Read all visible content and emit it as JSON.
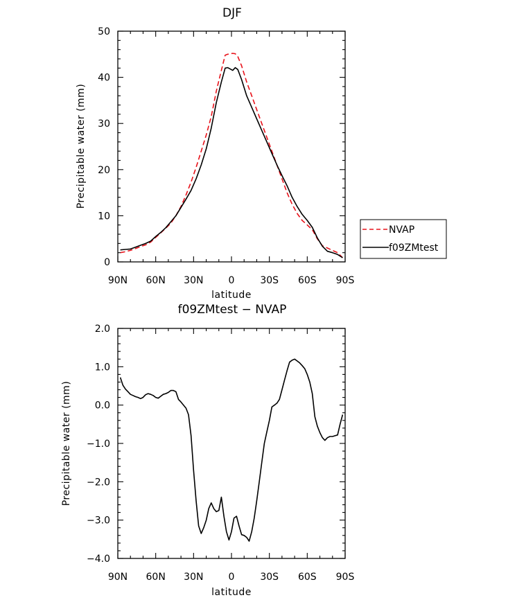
{
  "colors": {
    "nvap": "#e8121a",
    "model": "#000000",
    "axis": "#000000"
  },
  "chart_data": [
    {
      "type": "line",
      "title": "DJF",
      "xlabel": "latitude",
      "ylabel": "Precipitable water (mm)",
      "xlim": [
        90,
        -90
      ],
      "ylim": [
        0,
        50
      ],
      "yticks": [
        0,
        10,
        20,
        30,
        40,
        50
      ],
      "ytick_labels": [
        "0",
        "10",
        "20",
        "30",
        "40",
        "50"
      ],
      "xticks": [
        90,
        60,
        30,
        0,
        -30,
        -60,
        -90
      ],
      "xtick_labels": [
        "90N",
        "60N",
        "30N",
        "0",
        "30S",
        "60S",
        "90S"
      ],
      "grid": false,
      "legend_position": "right, outside plot",
      "series": [
        {
          "name": "NVAP",
          "style": "dashed",
          "color": "#e8121a",
          "x": [
            88,
            84,
            80,
            76,
            72,
            68,
            64,
            60,
            56,
            52,
            48,
            44,
            40,
            36,
            32,
            28,
            24,
            20,
            16,
            12,
            8,
            5,
            3,
            1,
            -1,
            -3,
            -5,
            -8,
            -12,
            -16,
            -20,
            -24,
            -28,
            -32,
            -36,
            -40,
            -44,
            -48,
            -52,
            -56,
            -60,
            -64,
            -68,
            -72,
            -76,
            -80,
            -84,
            -88
          ],
          "y": [
            2.0,
            2.2,
            2.5,
            2.9,
            3.3,
            3.7,
            4.3,
            5.3,
            6.3,
            7.3,
            8.4,
            10.0,
            12.0,
            14.5,
            17.3,
            20.5,
            24.0,
            27.5,
            31.5,
            37.0,
            41.5,
            44.8,
            45.0,
            45.1,
            45.2,
            45.1,
            44.5,
            42.5,
            39.0,
            36.0,
            33.0,
            30.0,
            27.0,
            24.0,
            21.0,
            18.0,
            15.0,
            12.5,
            10.5,
            9.0,
            8.0,
            7.0,
            5.0,
            3.5,
            3.0,
            2.5,
            2.0,
            0.9
          ]
        },
        {
          "name": "f09ZMtest",
          "style": "solid",
          "color": "#000000",
          "x": [
            88,
            84,
            80,
            76,
            72,
            68,
            64,
            60,
            56,
            52,
            48,
            44,
            40,
            36,
            32,
            28,
            24,
            20,
            16,
            12,
            8,
            5,
            3,
            1,
            -1,
            -3,
            -5,
            -8,
            -12,
            -16,
            -20,
            -24,
            -28,
            -32,
            -36,
            -40,
            -44,
            -48,
            -52,
            -56,
            -60,
            -64,
            -68,
            -72,
            -76,
            -80,
            -84,
            -88
          ],
          "y": [
            2.6,
            2.7,
            2.8,
            3.2,
            3.6,
            4.0,
            4.5,
            5.5,
            6.4,
            7.4,
            8.7,
            10.0,
            11.8,
            13.6,
            15.5,
            18.0,
            21.0,
            24.5,
            29.0,
            34.5,
            39.0,
            42.0,
            42.1,
            41.8,
            41.5,
            42.1,
            41.7,
            39.5,
            36.0,
            33.5,
            31.0,
            28.5,
            26.0,
            23.5,
            21.0,
            18.7,
            16.5,
            14.0,
            12.0,
            10.3,
            9.0,
            7.5,
            5.2,
            3.4,
            2.3,
            2.0,
            1.6,
            0.9
          ]
        }
      ]
    },
    {
      "type": "line",
      "title": "f09ZMtest − NVAP",
      "xlabel": "latitude",
      "ylabel": "Precipitable water (mm)",
      "xlim": [
        90,
        -90
      ],
      "ylim": [
        -4,
        2
      ],
      "yticks": [
        -4,
        -3,
        -2,
        -1,
        0,
        1,
        2
      ],
      "ytick_labels": [
        "−4.0",
        "−3.0",
        "−2.0",
        "−1.0",
        "0.0",
        "1.0",
        "2.0"
      ],
      "xticks": [
        90,
        60,
        30,
        0,
        -30,
        -60,
        -90
      ],
      "xtick_labels": [
        "90N",
        "60N",
        "30N",
        "0",
        "30S",
        "60S",
        "90S"
      ],
      "grid": false,
      "series": [
        {
          "style": "solid",
          "color": "#000000",
          "x": [
            88,
            86,
            84,
            82,
            80,
            78,
            76,
            74,
            72,
            70,
            68,
            66,
            64,
            62,
            60,
            58,
            56,
            54,
            52,
            50,
            48,
            46,
            44,
            42,
            40,
            38,
            36,
            34,
            32,
            30,
            28,
            26,
            24,
            22,
            20,
            18,
            16,
            14,
            12,
            10,
            8,
            6,
            4,
            2,
            0,
            -2,
            -4,
            -6,
            -8,
            -10,
            -12,
            -14,
            -16,
            -18,
            -20,
            -22,
            -24,
            -26,
            -28,
            -30,
            -32,
            -34,
            -36,
            -38,
            -40,
            -42,
            -44,
            -46,
            -48,
            -50,
            -52,
            -54,
            -56,
            -58,
            -60,
            -62,
            -64,
            -66,
            -68,
            -70,
            -72,
            -74,
            -76,
            -78,
            -80,
            -82,
            -84,
            -86,
            -88
          ],
          "y": [
            0.72,
            0.52,
            0.42,
            0.35,
            0.28,
            0.25,
            0.22,
            0.2,
            0.17,
            0.2,
            0.27,
            0.3,
            0.28,
            0.25,
            0.2,
            0.18,
            0.23,
            0.28,
            0.3,
            0.33,
            0.38,
            0.38,
            0.35,
            0.15,
            0.08,
            0.0,
            -0.08,
            -0.25,
            -0.8,
            -1.7,
            -2.5,
            -3.15,
            -3.35,
            -3.2,
            -3.0,
            -2.7,
            -2.55,
            -2.7,
            -2.78,
            -2.75,
            -2.4,
            -2.9,
            -3.3,
            -3.52,
            -3.3,
            -2.95,
            -2.9,
            -3.15,
            -3.38,
            -3.4,
            -3.45,
            -3.55,
            -3.3,
            -2.95,
            -2.5,
            -2.0,
            -1.5,
            -1.0,
            -0.7,
            -0.4,
            -0.05,
            0.0,
            0.05,
            0.15,
            0.4,
            0.65,
            0.9,
            1.12,
            1.17,
            1.2,
            1.15,
            1.1,
            1.03,
            0.95,
            0.8,
            0.6,
            0.3,
            -0.3,
            -0.55,
            -0.72,
            -0.85,
            -0.92,
            -0.85,
            -0.82,
            -0.82,
            -0.8,
            -0.78,
            -0.5,
            -0.25
          ]
        }
      ]
    }
  ]
}
